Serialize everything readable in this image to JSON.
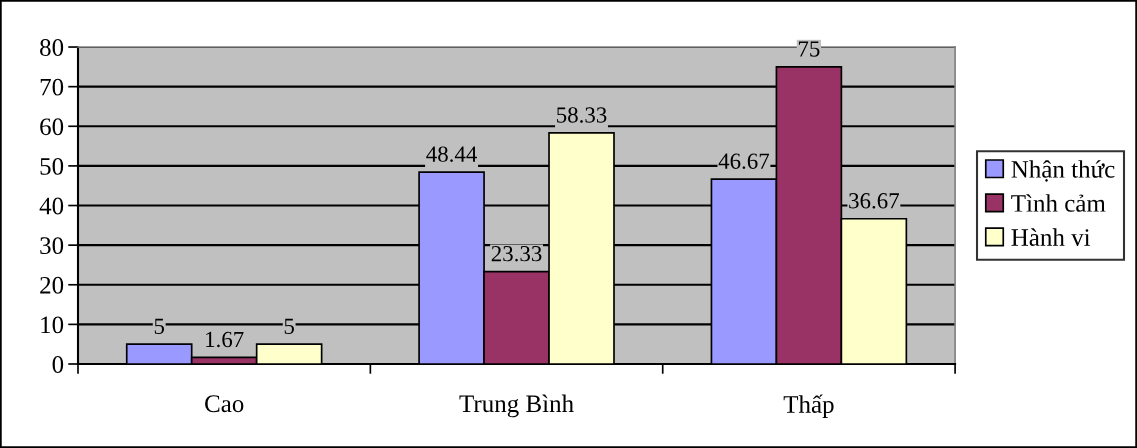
{
  "chart_data": {
    "type": "bar",
    "categories": [
      "Cao",
      "Trung Bình",
      "Thấp"
    ],
    "series": [
      {
        "name": "Nhận thức",
        "color": "#9999ff",
        "values": [
          5,
          48.44,
          46.67
        ]
      },
      {
        "name": "Tình cảm",
        "color": "#993366",
        "values": [
          1.67,
          23.33,
          75
        ]
      },
      {
        "name": "Hành vi",
        "color": "#ffffcc",
        "values": [
          5,
          58.33,
          36.67
        ]
      }
    ],
    "ylim": [
      0,
      80
    ],
    "yticks": [
      0,
      10,
      20,
      30,
      40,
      50,
      60,
      70,
      80
    ],
    "grid": "y",
    "legend": "right",
    "data_labels": true
  }
}
